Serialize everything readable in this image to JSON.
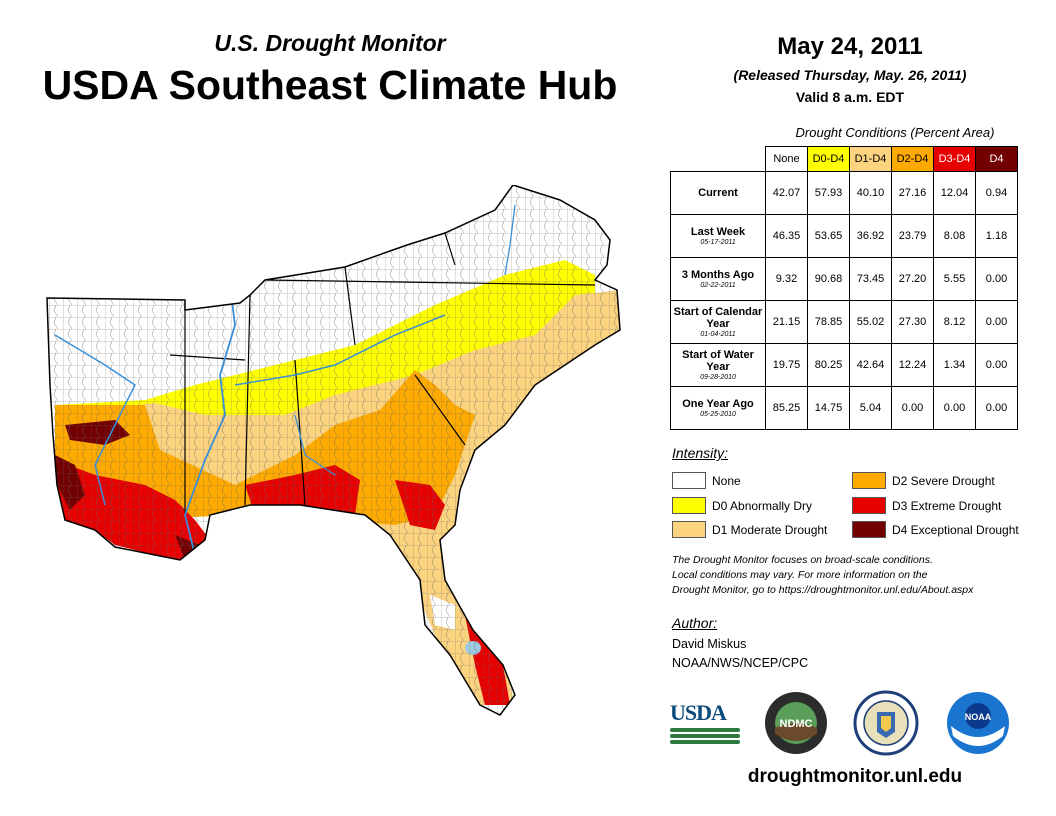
{
  "header": {
    "subtitle": "U.S. Drought Monitor",
    "title": "USDA Southeast Climate Hub",
    "date": "May 24, 2011",
    "released": "(Released Thursday, May. 26, 2011)",
    "valid": "Valid 8 a.m. EDT"
  },
  "table": {
    "title": "Drought Conditions (Percent Area)",
    "columns": [
      "None",
      "D0-D4",
      "D1-D4",
      "D2-D4",
      "D3-D4",
      "D4"
    ],
    "column_colors": [
      "#ffffff",
      "#ffff00",
      "#fcd37f",
      "#ffaa00",
      "#e60000",
      "#730000"
    ],
    "rows": [
      {
        "label": "Current",
        "date": "",
        "values": [
          "42.07",
          "57.93",
          "40.10",
          "27.16",
          "12.04",
          "0.94"
        ]
      },
      {
        "label": "Last Week",
        "date": "05-17-2011",
        "values": [
          "46.35",
          "53.65",
          "36.92",
          "23.79",
          "8.08",
          "1.18"
        ]
      },
      {
        "label": "3 Months Ago",
        "date": "02-22-2011",
        "values": [
          "9.32",
          "90.68",
          "73.45",
          "27.20",
          "5.55",
          "0.00"
        ]
      },
      {
        "label": "Start of Calendar Year",
        "date": "01-04-2011",
        "values": [
          "21.15",
          "78.85",
          "55.02",
          "27.30",
          "8.12",
          "0.00"
        ]
      },
      {
        "label": "Start of Water Year",
        "date": "09-28-2010",
        "values": [
          "19.75",
          "80.25",
          "42.64",
          "12.24",
          "1.34",
          "0.00"
        ]
      },
      {
        "label": "One Year Ago",
        "date": "05-25-2010",
        "values": [
          "85.25",
          "14.75",
          "5.04",
          "0.00",
          "0.00",
          "0.00"
        ]
      }
    ]
  },
  "legend": {
    "title": "Intensity:",
    "items": [
      {
        "label": "None",
        "color": "#ffffff"
      },
      {
        "label": "D0 Abnormally Dry",
        "color": "#ffff00"
      },
      {
        "label": "D1 Moderate Drought",
        "color": "#fcd37f"
      },
      {
        "label": "D2 Severe Drought",
        "color": "#ffaa00"
      },
      {
        "label": "D3 Extreme Drought",
        "color": "#e60000"
      },
      {
        "label": "D4 Exceptional Drought",
        "color": "#730000"
      }
    ]
  },
  "note": {
    "line1": "The Drought Monitor focuses on broad-scale conditions.",
    "line2": "Local conditions may vary. For more information on the",
    "line3": "Drought Monitor, go to https://droughtmonitor.unl.edu/About.aspx"
  },
  "author": {
    "title": "Author:",
    "name": "David Miskus",
    "org": "NOAA/NWS/NCEP/CPC"
  },
  "logos": {
    "usda": "USDA",
    "ndmc": "NDMC",
    "noaa": "NOAA"
  },
  "footer": {
    "website": "droughtmonitor.unl.edu"
  }
}
